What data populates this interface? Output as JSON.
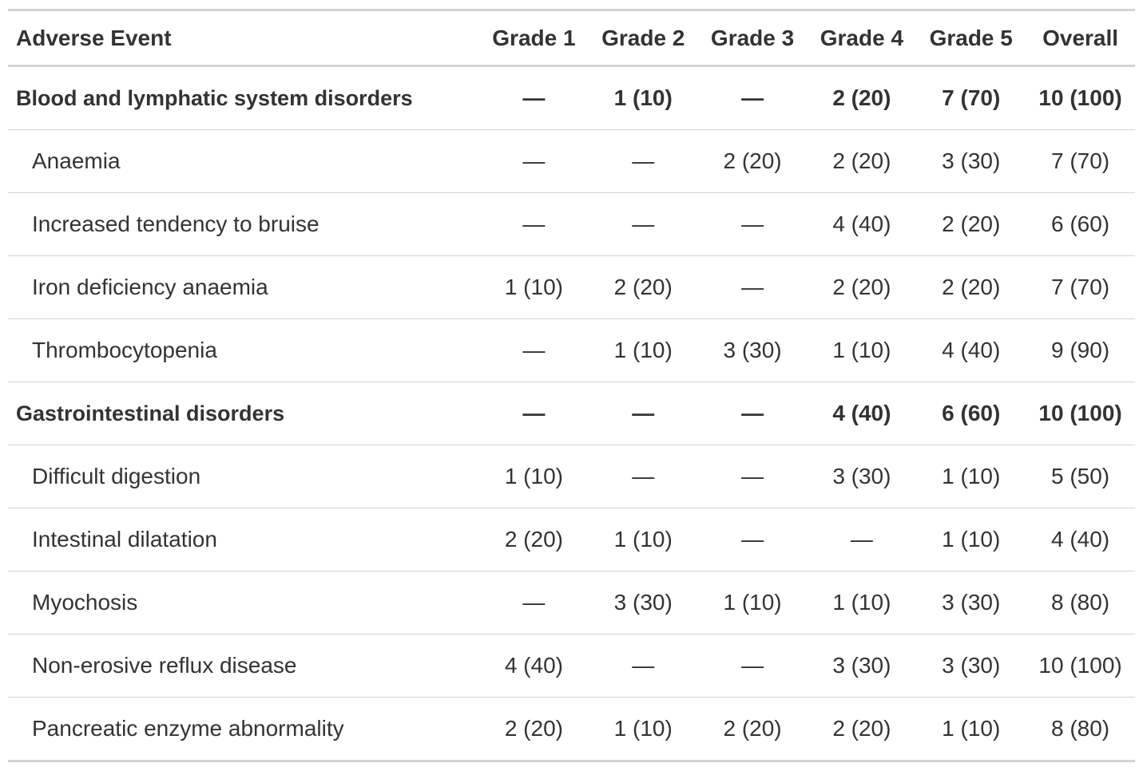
{
  "header": [
    "Adverse Event",
    "Grade 1",
    "Grade 2",
    "Grade 3",
    "Grade 4",
    "Grade 5",
    "Overall"
  ],
  "groups": [
    {
      "name": "Blood and lymphatic system disorders",
      "cells": [
        "—",
        "1 (10)",
        "—",
        "2 (20)",
        "7 (70)",
        "10 (100)"
      ],
      "rows": [
        {
          "name": "Anaemia",
          "cells": [
            "—",
            "—",
            "2 (20)",
            "2 (20)",
            "3 (30)",
            "7 (70)"
          ]
        },
        {
          "name": "Increased tendency to bruise",
          "cells": [
            "—",
            "—",
            "—",
            "4 (40)",
            "2 (20)",
            "6 (60)"
          ]
        },
        {
          "name": "Iron deficiency anaemia",
          "cells": [
            "1 (10)",
            "2 (20)",
            "—",
            "2 (20)",
            "2 (20)",
            "7 (70)"
          ]
        },
        {
          "name": "Thrombocytopenia",
          "cells": [
            "—",
            "1 (10)",
            "3 (30)",
            "1 (10)",
            "4 (40)",
            "9 (90)"
          ]
        }
      ]
    },
    {
      "name": "Gastrointestinal disorders",
      "cells": [
        "—",
        "—",
        "—",
        "4 (40)",
        "6 (60)",
        "10 (100)"
      ],
      "rows": [
        {
          "name": "Difficult digestion",
          "cells": [
            "1 (10)",
            "—",
            "—",
            "3 (30)",
            "1 (10)",
            "5 (50)"
          ]
        },
        {
          "name": "Intestinal dilatation",
          "cells": [
            "2 (20)",
            "1 (10)",
            "—",
            "—",
            "1 (10)",
            "4 (40)"
          ]
        },
        {
          "name": "Myochosis",
          "cells": [
            "—",
            "3 (30)",
            "1 (10)",
            "1 (10)",
            "3 (30)",
            "8 (80)"
          ]
        },
        {
          "name": "Non-erosive reflux disease",
          "cells": [
            "4 (40)",
            "—",
            "—",
            "3 (30)",
            "3 (30)",
            "10 (100)"
          ]
        },
        {
          "name": "Pancreatic enzyme abnormality",
          "cells": [
            "2 (20)",
            "1 (10)",
            "2 (20)",
            "2 (20)",
            "1 (10)",
            "8 (80)"
          ]
        }
      ]
    }
  ]
}
